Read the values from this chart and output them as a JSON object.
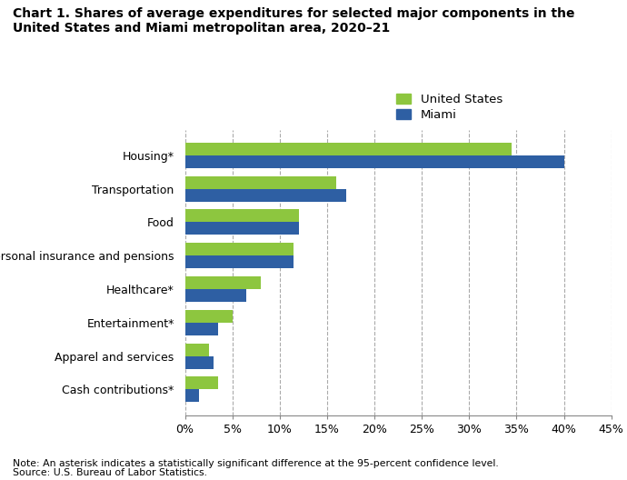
{
  "title_line1": "Chart 1. Shares of average expenditures for selected major components in the",
  "title_line2": "United States and Miami metropolitan area, 2020–21",
  "categories": [
    "Cash contributions*",
    "Apparel and services",
    "Entertainment*",
    "Healthcare*",
    "Personal insurance and pensions",
    "Food",
    "Transportation",
    "Housing*"
  ],
  "us_values": [
    3.5,
    2.5,
    5.0,
    8.0,
    11.5,
    12.0,
    16.0,
    34.5
  ],
  "miami_values": [
    1.5,
    3.0,
    3.5,
    6.5,
    11.5,
    12.0,
    17.0,
    40.0
  ],
  "us_color": "#8dc63f",
  "miami_color": "#2e5fa3",
  "xlim": [
    0,
    45
  ],
  "xtick_values": [
    0,
    5,
    10,
    15,
    20,
    25,
    30,
    35,
    40,
    45
  ],
  "xtick_labels": [
    "0%",
    "5%",
    "10%",
    "15%",
    "20%",
    "25%",
    "30%",
    "35%",
    "40%",
    "45%"
  ],
  "legend_labels": [
    "United States",
    "Miami"
  ],
  "note_line1": "Note: An asterisk indicates a statistically significant difference at the 95-percent confidence level.",
  "note_line2": "Source: U.S. Bureau of Labor Statistics.",
  "grid_color": "#aaaaaa",
  "bar_height": 0.38,
  "background_color": "#ffffff"
}
